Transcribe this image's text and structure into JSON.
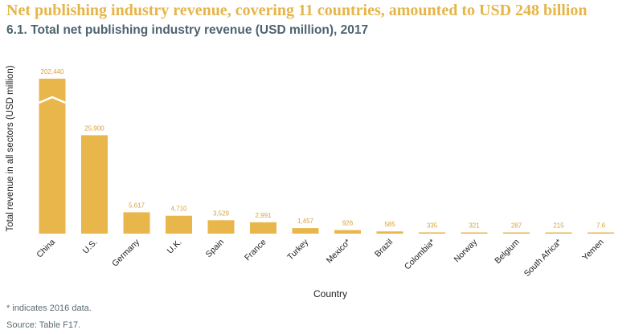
{
  "headline": "Net publishing industry revenue, covering 11 countries, amounted to USD 248 billion",
  "subtitle": "6.1. Total net publishing industry revenue (USD million), 2017",
  "footnote": "* indicates 2016 data.",
  "source": "Source: Table F17.",
  "colors": {
    "bar": "#e9b64b",
    "label": "#d9a23a",
    "title": "#e6b54a",
    "subtitle": "#4d6470",
    "axis": "#222222"
  },
  "chart_data": {
    "type": "bar",
    "xlabel": "Country",
    "ylabel": "Total revenue in all sectors (USD million)",
    "grid": false,
    "axis_break": true,
    "categories": [
      "China",
      "U.S.",
      "Germany",
      "U.K.",
      "Spain",
      "France",
      "Turkey",
      "Mexico*",
      "Brazil",
      "Colombia*",
      "Norway",
      "Belgium",
      "South Africa*",
      "Yemen"
    ],
    "values": [
      202440,
      25900,
      5617,
      4710,
      3529,
      2991,
      1457,
      926,
      585,
      335,
      321,
      287,
      215,
      7.6
    ],
    "value_labels": [
      "202,440",
      "25,900",
      "5,617",
      "4,710",
      "3,529",
      "2,991",
      "1,457",
      "926",
      "585",
      "335",
      "321",
      "287",
      "215",
      "7.6"
    ]
  }
}
